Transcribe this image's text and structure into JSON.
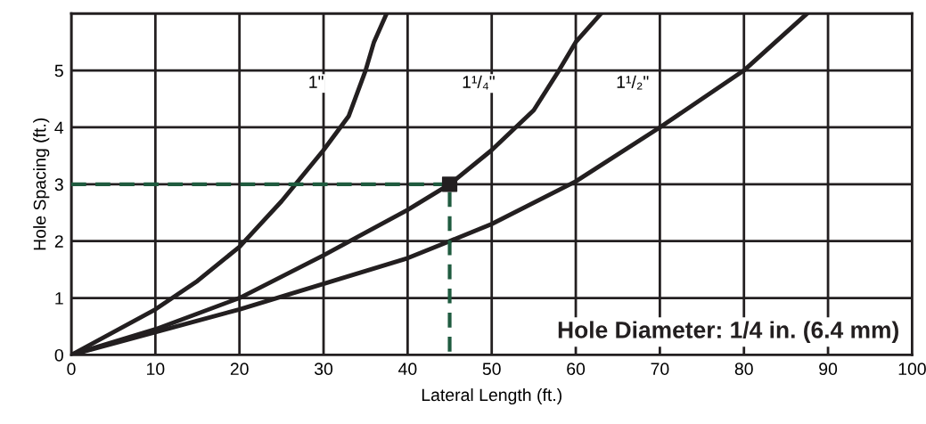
{
  "chart_data": {
    "type": "line",
    "xlabel": "Lateral Length (ft.)",
    "ylabel": "Hole Spacing (ft.)",
    "xlim": [
      0,
      100
    ],
    "xticks": [
      0,
      10,
      20,
      30,
      40,
      50,
      60,
      70,
      80,
      90,
      100
    ],
    "ylim": [
      0,
      6
    ],
    "yticks": [
      0,
      1,
      2,
      3,
      4,
      5,
      {
        "value": 6,
        "label": null
      }
    ],
    "grid": true,
    "legend": false,
    "series": [
      {
        "name": "1\"",
        "color": "#231f20",
        "x": [
          0,
          10,
          15,
          20,
          25,
          30,
          33,
          35,
          36,
          37.5
        ],
        "values": [
          0,
          0.8,
          1.3,
          1.9,
          2.7,
          3.6,
          4.2,
          5,
          5.5,
          6
        ]
      },
      {
        "name": "1¹/₄\"",
        "color": "#231f20",
        "x": [
          0,
          10,
          20,
          30,
          40,
          45,
          50,
          55,
          58,
          60,
          63
        ],
        "values": [
          0,
          0.45,
          1,
          1.75,
          2.55,
          3,
          3.6,
          4.3,
          5,
          5.5,
          6
        ]
      },
      {
        "name": "1¹/₂\"",
        "color": "#231f20",
        "x": [
          0,
          10,
          20,
          30,
          40,
          45,
          50,
          60,
          70,
          80,
          87.5
        ],
        "values": [
          0,
          0.4,
          0.8,
          1.25,
          1.7,
          2,
          2.3,
          3.05,
          4,
          5,
          6
        ]
      },
      {
        "type": "line",
        "line_style": "dashed",
        "color": "#1f5b3f",
        "x": [
          0,
          45,
          45
        ],
        "values": [
          3,
          3,
          0
        ]
      },
      {
        "type": "scatter",
        "marker": "square",
        "color": "#231f20",
        "x": [
          45
        ],
        "values": [
          3
        ]
      }
    ],
    "annotations": [
      "Hole Diameter: 1/4 in. (6.4 mm)"
    ]
  }
}
